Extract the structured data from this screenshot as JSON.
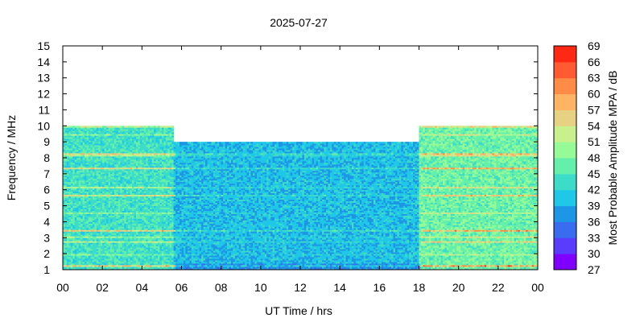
{
  "chart_data": {
    "type": "heatmap",
    "title": "2025-07-27",
    "xlabel": "UT Time / hrs",
    "ylabel": "Frequency / MHz",
    "colorbar_label": "Most Probable Amplitude MPA / dB",
    "xlim": [
      0,
      24
    ],
    "ylim": [
      1,
      15
    ],
    "x_tick_labels": [
      "00",
      "02",
      "04",
      "06",
      "08",
      "10",
      "12",
      "14",
      "16",
      "18",
      "20",
      "22",
      "00"
    ],
    "y_tick_labels": [
      "1",
      "2",
      "3",
      "4",
      "5",
      "6",
      "7",
      "8",
      "9",
      "10",
      "11",
      "12",
      "13",
      "14",
      "15"
    ],
    "colorbar_levels": [
      27,
      30,
      33,
      36,
      39,
      42,
      45,
      48,
      51,
      54,
      57,
      60,
      63,
      66,
      69
    ],
    "colorbar_colors": [
      "#7f00ff",
      "#5a3cff",
      "#3a6cf0",
      "#1e96e6",
      "#1ec8e6",
      "#3cdcc8",
      "#64f0aa",
      "#96fa96",
      "#c8f08c",
      "#e6d282",
      "#ffb464",
      "#ff8c46",
      "#ff5a32",
      "#ff2814"
    ],
    "upper_frequency_limit_MHz": [
      {
        "from_hr": 0,
        "to_hr": 5.6,
        "value": 10
      },
      {
        "from_hr": 5.6,
        "to_hr": 18.0,
        "value": 9
      },
      {
        "from_hr": 18.0,
        "to_hr": 24,
        "value": 10
      }
    ],
    "typical_mpa_dB": [
      {
        "period_hr": [
          0,
          5.6
        ],
        "value": 44
      },
      {
        "period_hr": [
          5.6,
          18.0
        ],
        "value": 40
      },
      {
        "period_hr": [
          18.0,
          24
        ],
        "value": 47
      }
    ],
    "grid": false
  }
}
